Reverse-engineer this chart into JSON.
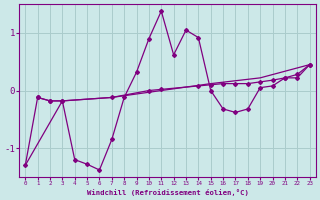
{
  "background_color": "#cce8e8",
  "line_color": "#800080",
  "grid_color": "#aacccc",
  "xlabel": "Windchill (Refroidissement éolien,°C)",
  "xlabel_color": "#800080",
  "xtick_color": "#800080",
  "ytick_color": "#800080",
  "xlim": [
    -0.5,
    23.5
  ],
  "ylim": [
    -1.5,
    1.5
  ],
  "yticks": [
    -1,
    0,
    1
  ],
  "xticks": [
    0,
    1,
    2,
    3,
    4,
    5,
    6,
    7,
    8,
    9,
    10,
    11,
    12,
    13,
    14,
    15,
    16,
    17,
    18,
    19,
    20,
    21,
    22,
    23
  ],
  "series1": [
    [
      0,
      -1.3
    ],
    [
      1,
      -0.12
    ],
    [
      2,
      -0.18
    ],
    [
      3,
      -0.18
    ],
    [
      4,
      -1.2
    ],
    [
      5,
      -1.28
    ],
    [
      6,
      -1.38
    ],
    [
      7,
      -0.85
    ],
    [
      8,
      -0.12
    ],
    [
      9,
      0.32
    ],
    [
      10,
      0.9
    ],
    [
      11,
      1.38
    ],
    [
      12,
      0.62
    ],
    [
      13,
      1.05
    ],
    [
      14,
      0.92
    ],
    [
      15,
      0.0
    ],
    [
      16,
      -0.32
    ],
    [
      17,
      -0.38
    ],
    [
      18,
      -0.32
    ],
    [
      19,
      0.05
    ],
    [
      20,
      0.08
    ],
    [
      21,
      0.22
    ],
    [
      22,
      0.22
    ],
    [
      23,
      0.45
    ]
  ],
  "series2": [
    [
      0,
      -1.3
    ],
    [
      3,
      -0.18
    ],
    [
      7,
      -0.12
    ],
    [
      11,
      0.0
    ],
    [
      15,
      0.12
    ],
    [
      19,
      0.22
    ],
    [
      23,
      0.45
    ]
  ],
  "series3": [
    [
      1,
      -0.12
    ],
    [
      2,
      -0.18
    ],
    [
      3,
      -0.18
    ],
    [
      7,
      -0.12
    ],
    [
      10,
      0.0
    ],
    [
      11,
      0.02
    ],
    [
      14,
      0.08
    ],
    [
      15,
      0.1
    ],
    [
      16,
      0.12
    ],
    [
      17,
      0.12
    ],
    [
      18,
      0.12
    ],
    [
      19,
      0.15
    ],
    [
      20,
      0.18
    ],
    [
      21,
      0.22
    ],
    [
      22,
      0.28
    ],
    [
      23,
      0.45
    ]
  ]
}
